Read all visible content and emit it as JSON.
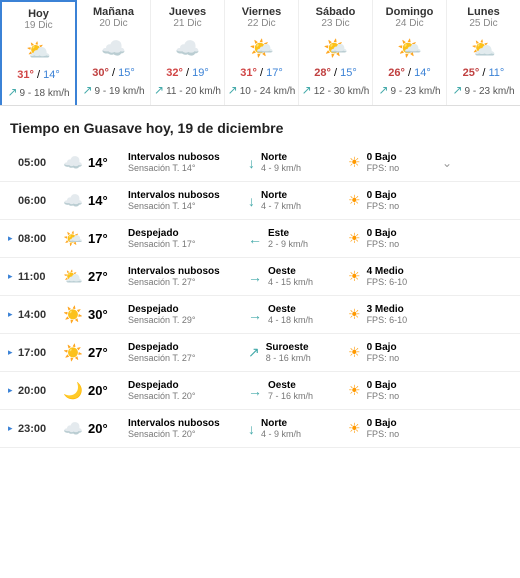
{
  "daily": [
    {
      "name": "Hoy",
      "date": "19 Dic",
      "icon": "⛅",
      "high": "31°",
      "highColor": "#d04545",
      "low": "14°",
      "wind": "9 - 18 km/h",
      "active": true
    },
    {
      "name": "Mañana",
      "date": "20 Dic",
      "icon": "☁️",
      "high": "30°",
      "highColor": "#c04040",
      "low": "15°",
      "wind": "9 - 19 km/h",
      "active": false
    },
    {
      "name": "Jueves",
      "date": "21 Dic",
      "icon": "☁️",
      "high": "32°",
      "highColor": "#d04545",
      "low": "19°",
      "wind": "11 - 20 km/h",
      "active": false
    },
    {
      "name": "Viernes",
      "date": "22 Dic",
      "icon": "🌤️",
      "high": "31°",
      "highColor": "#d04545",
      "low": "17°",
      "wind": "10 - 24 km/h",
      "active": false
    },
    {
      "name": "Sábado",
      "date": "23 Dic",
      "icon": "🌤️",
      "high": "28°",
      "highColor": "#c04040",
      "low": "15°",
      "wind": "12 - 30 km/h",
      "active": false
    },
    {
      "name": "Domingo",
      "date": "24 Dic",
      "icon": "🌤️",
      "high": "26°",
      "highColor": "#c04040",
      "low": "14°",
      "wind": "9 - 23 km/h",
      "active": false
    },
    {
      "name": "Lunes",
      "date": "25 Dic",
      "icon": "⛅",
      "high": "25°",
      "highColor": "#c04040",
      "low": "11°",
      "wind": "9 - 23 km/h",
      "active": false
    }
  ],
  "heading": "Tiempo en Guasave hoy, 19 de diciembre",
  "hourly": [
    {
      "marker": "",
      "time": "05:00",
      "icon": "☁️",
      "temp": "14°",
      "cond": "Intervalos nubosos",
      "feels": "Sensación T. 14°",
      "windArrow": "↓",
      "windDir": "Norte",
      "windSpd": "4 - 9 km/h",
      "uvVal": "0 Bajo",
      "uvFps": "FPS: no"
    },
    {
      "marker": "",
      "time": "06:00",
      "icon": "☁️",
      "temp": "14°",
      "cond": "Intervalos nubosos",
      "feels": "Sensación T. 14°",
      "windArrow": "↓",
      "windDir": "Norte",
      "windSpd": "4 - 7 km/h",
      "uvVal": "0 Bajo",
      "uvFps": "FPS: no"
    },
    {
      "marker": "▸",
      "time": "08:00",
      "icon": "🌤️",
      "temp": "17°",
      "cond": "Despejado",
      "feels": "Sensación T. 17°",
      "windArrow": "←",
      "windDir": "Este",
      "windSpd": "2 - 9 km/h",
      "uvVal": "0 Bajo",
      "uvFps": "FPS: no"
    },
    {
      "marker": "▸",
      "time": "11:00",
      "icon": "⛅",
      "temp": "27°",
      "cond": "Intervalos nubosos",
      "feels": "Sensación T. 27°",
      "windArrow": "→",
      "windDir": "Oeste",
      "windSpd": "4 - 15 km/h",
      "uvVal": "4 Medio",
      "uvFps": "FPS: 6-10"
    },
    {
      "marker": "▸",
      "time": "14:00",
      "icon": "☀️",
      "temp": "30°",
      "cond": "Despejado",
      "feels": "Sensación T. 29°",
      "windArrow": "→",
      "windDir": "Oeste",
      "windSpd": "4 - 18 km/h",
      "uvVal": "3 Medio",
      "uvFps": "FPS: 6-10"
    },
    {
      "marker": "▸",
      "time": "17:00",
      "icon": "☀️",
      "temp": "27°",
      "cond": "Despejado",
      "feels": "Sensación T. 27°",
      "windArrow": "↗",
      "windDir": "Suroeste",
      "windSpd": "8 - 16 km/h",
      "uvVal": "0 Bajo",
      "uvFps": "FPS: no"
    },
    {
      "marker": "▸",
      "time": "20:00",
      "icon": "🌙",
      "temp": "20°",
      "cond": "Despejado",
      "feels": "Sensación T. 20°",
      "windArrow": "→",
      "windDir": "Oeste",
      "windSpd": "7 - 16 km/h",
      "uvVal": "0 Bajo",
      "uvFps": "FPS: no"
    },
    {
      "marker": "▸",
      "time": "23:00",
      "icon": "☁️",
      "temp": "20°",
      "cond": "Intervalos nubosos",
      "feels": "Sensación T. 20°",
      "windArrow": "↓",
      "windDir": "Norte",
      "windSpd": "4 - 9 km/h",
      "uvVal": "0 Bajo",
      "uvFps": "FPS: no"
    }
  ]
}
